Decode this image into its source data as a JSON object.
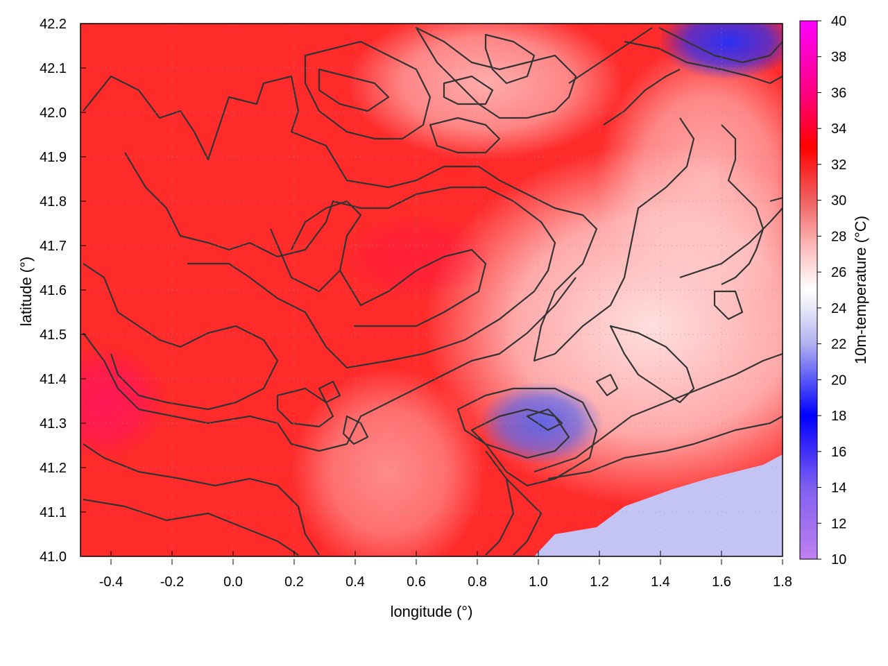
{
  "chart_data": {
    "type": "heatmap",
    "xlabel": "longitude (°)",
    "ylabel": "latitude (°)",
    "colorbar_label": "10m-temperature (°C)",
    "xlim": [
      -0.5,
      1.8
    ],
    "ylim": [
      41.0,
      42.2
    ],
    "x_ticks": [
      "-0.4",
      "-0.2",
      "0.0",
      "0.2",
      "0.4",
      "0.6",
      "0.8",
      "1.0",
      "1.2",
      "1.4",
      "1.6",
      "1.8"
    ],
    "y_ticks": [
      "41.0",
      "41.1",
      "41.2",
      "41.3",
      "41.4",
      "41.5",
      "41.6",
      "41.7",
      "41.8",
      "41.9",
      "42.0",
      "42.1",
      "42.2"
    ],
    "colorbar_range": [
      10,
      40
    ],
    "colorbar_ticks": [
      "10",
      "12",
      "14",
      "16",
      "18",
      "20",
      "22",
      "24",
      "26",
      "28",
      "30",
      "32",
      "34",
      "36",
      "38",
      "40"
    ],
    "colormap": [
      {
        "value": 10,
        "color": "#c080f0"
      },
      {
        "value": 14,
        "color": "#8060f0"
      },
      {
        "value": 18,
        "color": "#0000ff"
      },
      {
        "value": 22,
        "color": "#b0b0f0"
      },
      {
        "value": 24,
        "color": "#e8e8fa"
      },
      {
        "value": 25,
        "color": "#ffffff"
      },
      {
        "value": 27,
        "color": "#ffc8c8"
      },
      {
        "value": 30,
        "color": "#f06060"
      },
      {
        "value": 33,
        "color": "#ff0000"
      },
      {
        "value": 36,
        "color": "#ff0080"
      },
      {
        "value": 40,
        "color": "#ff00ff"
      }
    ],
    "grid": true,
    "contours": true
  }
}
